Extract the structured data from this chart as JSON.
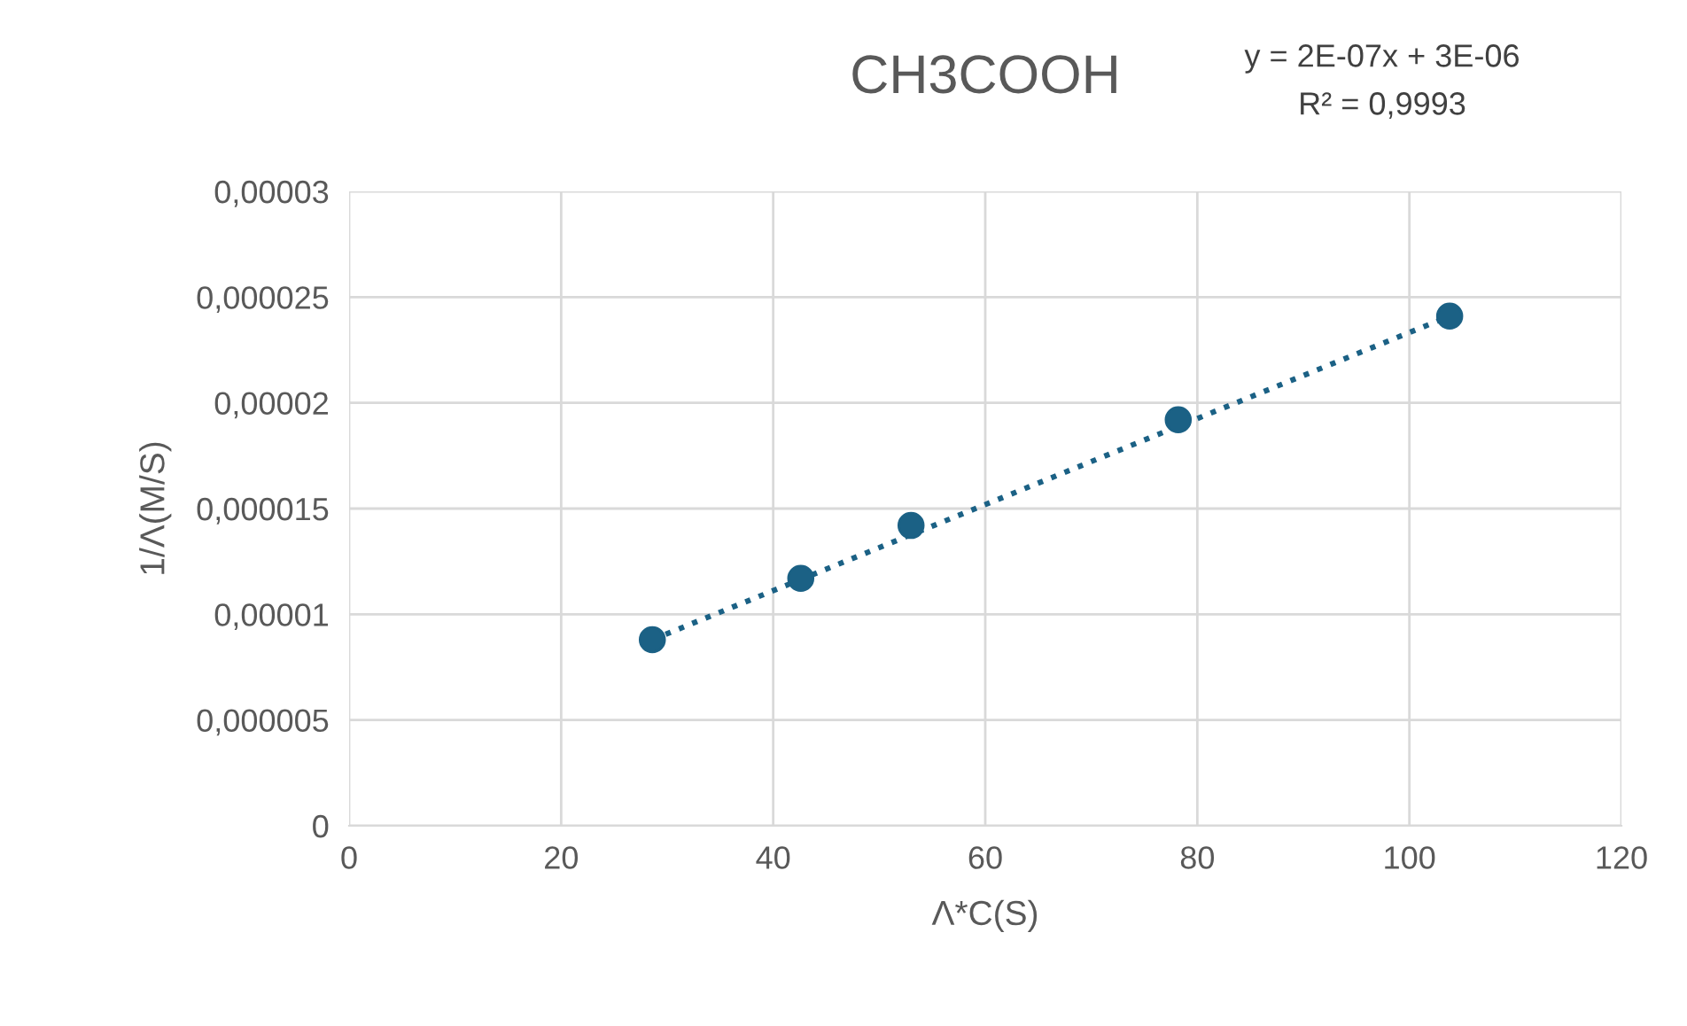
{
  "chart_data": {
    "type": "scatter",
    "title": "CH3COOH",
    "xlabel": "Λ*C(S)",
    "ylabel": "1/Λ(M/S)",
    "annotations": [
      "y = 2E-07x + 3E-06",
      "R² = 0,9993"
    ],
    "series": [
      {
        "color": "#1b6185",
        "marker": "circle",
        "x": [
          28.6,
          42.6,
          53.0,
          78.2,
          103.8
        ],
        "values": [
          8.8e-06,
          1.17e-05,
          1.42e-05,
          1.92e-05,
          2.41e-05
        ]
      },
      {
        "type": "line",
        "color": "#1b6185",
        "line_style": "dotted",
        "marker": "none",
        "x": [
          28.6,
          103.8
        ],
        "values": [
          8.8e-06,
          2.41e-05
        ]
      }
    ],
    "xlim": [
      0,
      120
    ],
    "xticks": [
      0,
      20,
      40,
      60,
      80,
      100,
      120
    ],
    "ylim": [
      0,
      3e-05
    ],
    "yticks": [
      0,
      {
        "value": 5e-06,
        "label": "0,000005"
      },
      {
        "value": 1e-05,
        "label": "0,00001"
      },
      {
        "value": 1.5e-05,
        "label": "0,000015"
      },
      {
        "value": 2e-05,
        "label": "0,00002"
      },
      {
        "value": 2.5e-05,
        "label": "0,000025"
      },
      {
        "value": 3e-05,
        "label": "0,00003"
      }
    ],
    "grid": true,
    "legend": false
  }
}
